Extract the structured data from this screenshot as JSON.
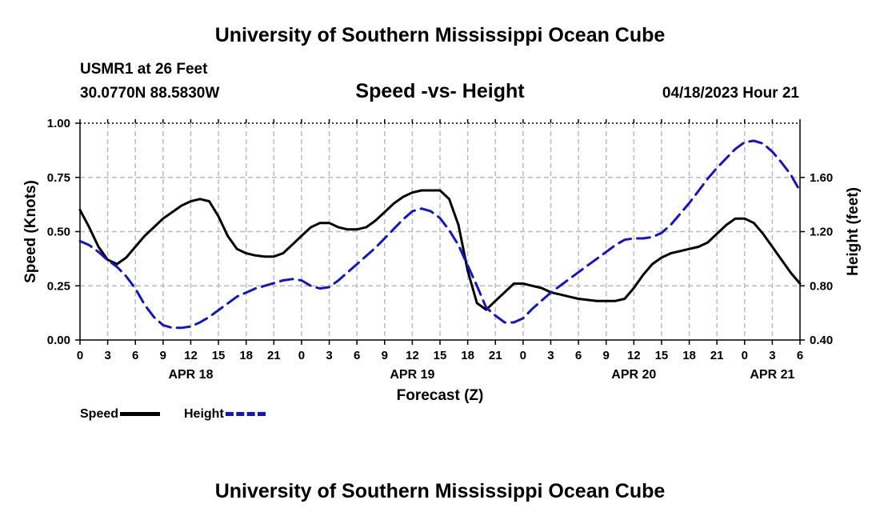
{
  "page": {
    "header_title": "University of Southern Mississippi Ocean Cube",
    "footer_title": "University of Southern Mississippi Ocean Cube",
    "station": "USMR1 at 26 Feet",
    "coordinates": "30.0770N  88.5830W",
    "timestamp": "04/18/2023 Hour 21"
  },
  "chart_data": {
    "type": "line",
    "title": "Speed -vs- Height",
    "xlabel": "Forecast (Z)",
    "ylabel": "Speed (Knots)",
    "y2label": "Height (feet)",
    "xlim": [
      0,
      78
    ],
    "ylim": [
      0,
      1
    ],
    "y2lim": [
      0.4,
      2.0
    ],
    "x_ticks": [
      0,
      3,
      6,
      9,
      12,
      15,
      18,
      21,
      24,
      27,
      30,
      33,
      36,
      39,
      42,
      45,
      48,
      51,
      54,
      57,
      60,
      63,
      66,
      69,
      72,
      75,
      78
    ],
    "x_tick_labels": [
      "0",
      "3",
      "6",
      "9",
      "12",
      "15",
      "18",
      "21",
      "0",
      "3",
      "6",
      "9",
      "12",
      "15",
      "18",
      "21",
      "0",
      "3",
      "6",
      "9",
      "12",
      "15",
      "18",
      "21",
      "0",
      "3",
      "6"
    ],
    "y_ticks": [
      0,
      0.25,
      0.5,
      0.75,
      1.0
    ],
    "y_tick_labels": [
      "0.00",
      "0.25",
      "0.50",
      "0.75",
      "1.00"
    ],
    "y2_ticks": [
      0.4,
      0.8,
      1.2,
      1.6
    ],
    "y2_tick_labels": [
      "0.40",
      "0.80",
      "1.20",
      "1.60"
    ],
    "date_labels": [
      {
        "x": 12,
        "label": "APR 18"
      },
      {
        "x": 36,
        "label": "APR 19"
      },
      {
        "x": 60,
        "label": "APR 20"
      },
      {
        "x": 75,
        "label": "APR 21"
      }
    ],
    "grid": true,
    "series": [
      {
        "name": "Speed",
        "axis": "left",
        "color": "#000000",
        "dash": "solid",
        "x": [
          0,
          1,
          2,
          3,
          4,
          5,
          6,
          7,
          8,
          9,
          10,
          11,
          12,
          13,
          14,
          15,
          16,
          17,
          18,
          19,
          20,
          21,
          22,
          23,
          24,
          25,
          26,
          27,
          28,
          29,
          30,
          31,
          32,
          33,
          34,
          35,
          36,
          37,
          38,
          39,
          40,
          41,
          42,
          43,
          44,
          45,
          46,
          47,
          48,
          49,
          50,
          51,
          52,
          53,
          54,
          55,
          56,
          57,
          58,
          59,
          60,
          61,
          62,
          63,
          64,
          65,
          66,
          67,
          68,
          69,
          70,
          71,
          72,
          73,
          74,
          75,
          76,
          77,
          78
        ],
        "values": [
          0.6,
          0.52,
          0.43,
          0.37,
          0.35,
          0.38,
          0.43,
          0.48,
          0.52,
          0.56,
          0.59,
          0.62,
          0.64,
          0.65,
          0.64,
          0.57,
          0.48,
          0.42,
          0.4,
          0.39,
          0.385,
          0.385,
          0.4,
          0.44,
          0.48,
          0.52,
          0.54,
          0.54,
          0.52,
          0.51,
          0.51,
          0.52,
          0.55,
          0.59,
          0.63,
          0.66,
          0.68,
          0.69,
          0.69,
          0.69,
          0.65,
          0.53,
          0.32,
          0.17,
          0.14,
          0.18,
          0.22,
          0.26,
          0.26,
          0.25,
          0.24,
          0.22,
          0.21,
          0.2,
          0.19,
          0.185,
          0.18,
          0.18,
          0.18,
          0.19,
          0.24,
          0.3,
          0.35,
          0.38,
          0.4,
          0.41,
          0.42,
          0.43,
          0.45,
          0.49,
          0.53,
          0.56,
          0.56,
          0.54,
          0.49,
          0.43,
          0.37,
          0.31,
          0.26
        ]
      },
      {
        "name": "Height",
        "axis": "right",
        "color": "#1414c8",
        "dash": "dashed",
        "x": [
          0,
          1,
          2,
          3,
          4,
          5,
          6,
          7,
          8,
          9,
          10,
          11,
          12,
          13,
          14,
          15,
          16,
          17,
          18,
          19,
          20,
          21,
          22,
          23,
          24,
          25,
          26,
          27,
          28,
          29,
          30,
          31,
          32,
          33,
          34,
          35,
          36,
          37,
          38,
          39,
          40,
          41,
          42,
          43,
          44,
          45,
          46,
          47,
          48,
          49,
          50,
          51,
          52,
          53,
          54,
          55,
          56,
          57,
          58,
          59,
          60,
          61,
          62,
          63,
          64,
          65,
          66,
          67,
          68,
          69,
          70,
          71,
          72,
          73,
          74,
          75,
          76,
          77,
          78
        ],
        "values": [
          1.13,
          1.1,
          1.05,
          0.99,
          0.94,
          0.87,
          0.78,
          0.66,
          0.57,
          0.51,
          0.49,
          0.49,
          0.5,
          0.53,
          0.57,
          0.62,
          0.67,
          0.72,
          0.75,
          0.78,
          0.8,
          0.82,
          0.84,
          0.85,
          0.84,
          0.8,
          0.78,
          0.79,
          0.84,
          0.9,
          0.96,
          1.02,
          1.08,
          1.15,
          1.22,
          1.29,
          1.35,
          1.37,
          1.35,
          1.3,
          1.21,
          1.1,
          0.95,
          0.8,
          0.64,
          0.58,
          0.53,
          0.53,
          0.56,
          0.63,
          0.69,
          0.75,
          0.8,
          0.85,
          0.9,
          0.95,
          1.0,
          1.05,
          1.1,
          1.14,
          1.15,
          1.15,
          1.16,
          1.19,
          1.25,
          1.33,
          1.41,
          1.5,
          1.59,
          1.67,
          1.74,
          1.81,
          1.86,
          1.87,
          1.85,
          1.79,
          1.71,
          1.62,
          1.5
        ]
      }
    ],
    "legend": [
      {
        "label": "Speed",
        "color": "#000000",
        "dash": "solid"
      },
      {
        "label": "Height",
        "color": "#1414c8",
        "dash": "dashed"
      }
    ]
  }
}
